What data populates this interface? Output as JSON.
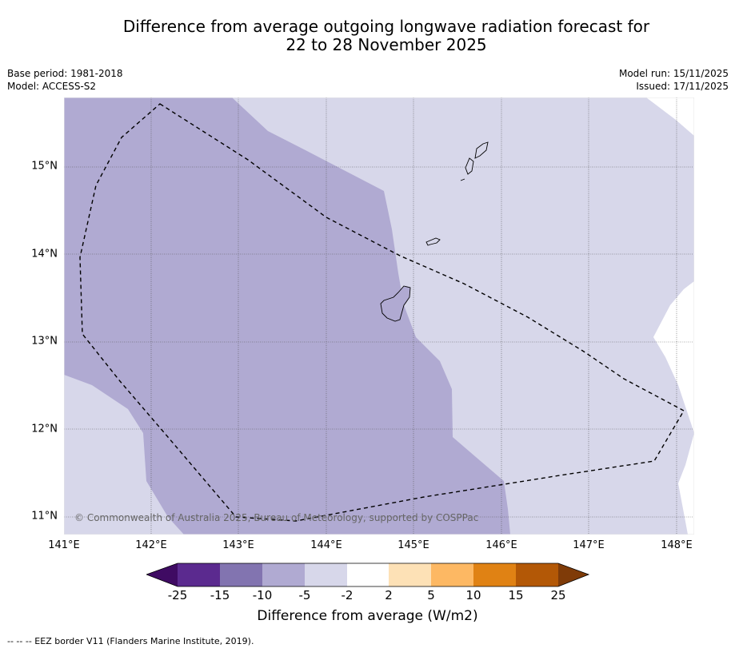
{
  "title": {
    "line1": "Difference from average outgoing longwave radiation forecast for",
    "line2": "22 to 28 November 2025"
  },
  "meta": {
    "base_period": "Base period: 1981-2018",
    "model": "Model: ACCESS-S2",
    "model_run": "Model run: 15/11/2025",
    "issued": "Issued: 17/11/2025"
  },
  "map": {
    "lat_labels": [
      "15°N",
      "14°N",
      "13°N",
      "12°N",
      "11°N"
    ],
    "lon_labels": [
      "141°E",
      "142°E",
      "143°E",
      "144°E",
      "145°E",
      "146°E",
      "147°E",
      "148°E"
    ],
    "copyright": "© Commonwealth of Australia 2025, Bureau of Meteorology, supported by COSPPac",
    "colors": {
      "band_-10_-5": "#b0aad2",
      "band_-5_-2": "#d7d7ea",
      "band_-2_2": "#ffffff",
      "coast": "#000000",
      "eez": "#000000"
    }
  },
  "colorbar": {
    "ticks": [
      "-25",
      "-15",
      "-10",
      "-5",
      "-2",
      "2",
      "5",
      "10",
      "15",
      "25"
    ],
    "colors": [
      "#3f0b63",
      "#5b2a8f",
      "#8274b0",
      "#b0aad2",
      "#d7d7ea",
      "#ffffff",
      "#fde1b6",
      "#fdb863",
      "#e08214",
      "#b35806",
      "#7f3b08"
    ],
    "label": "Difference from average (W/m2)"
  },
  "footnote": "--  --  -- EEZ border V11 (Flanders Marine Institute, 2019)."
}
